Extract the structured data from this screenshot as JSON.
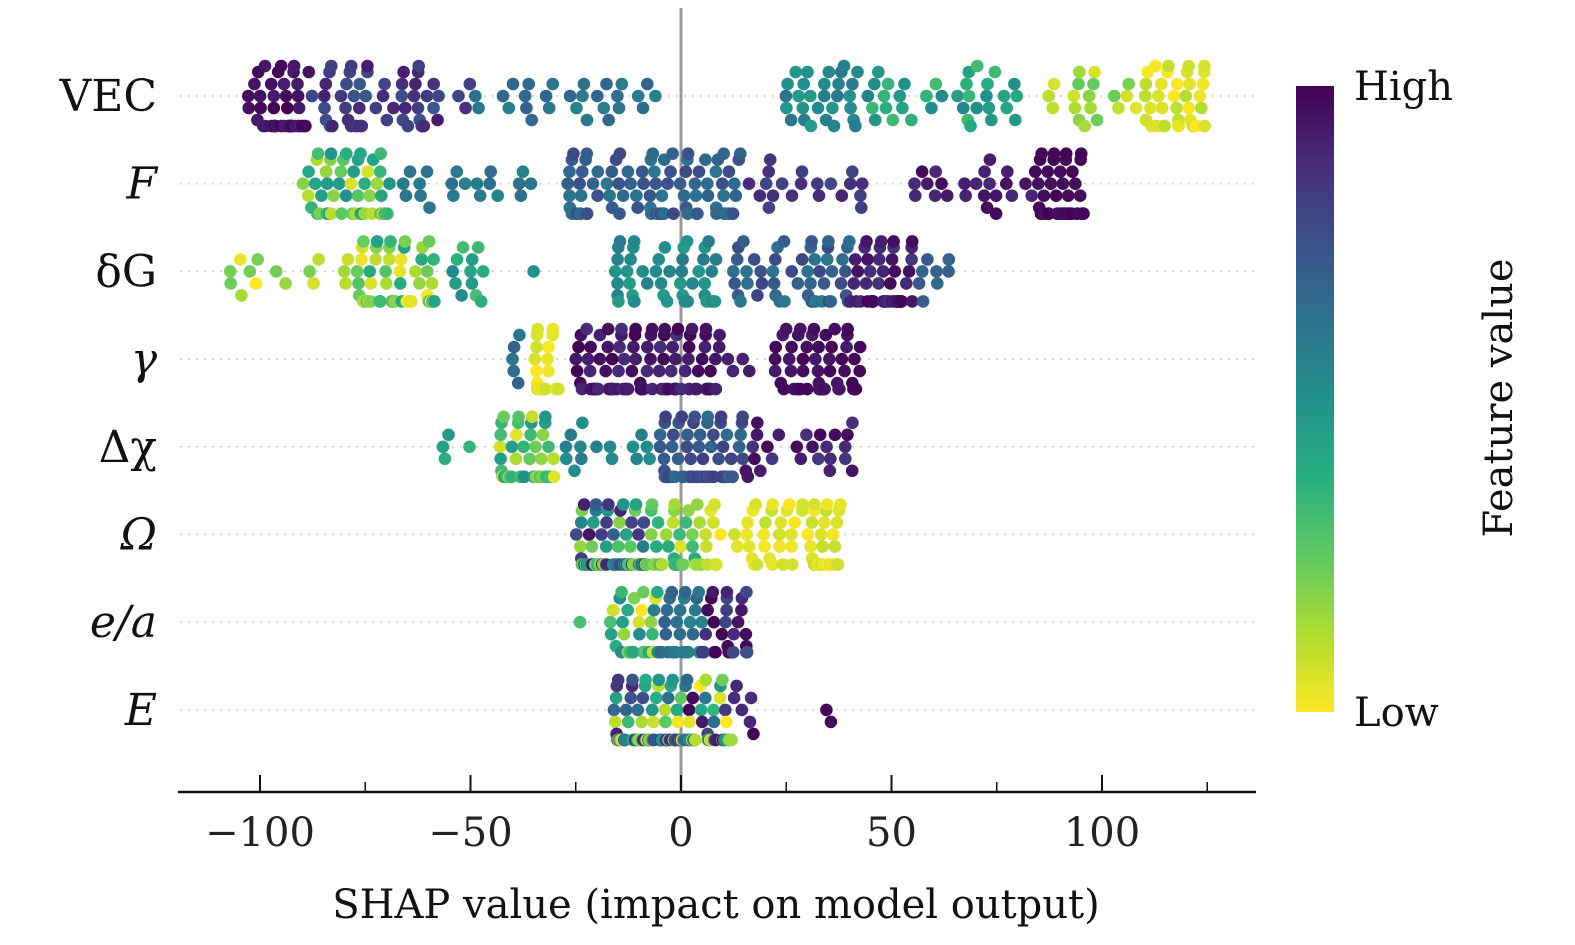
{
  "chart_data": {
    "type": "scatter",
    "subtype": "shap-beeswarm",
    "xlabel": "SHAP value (impact on model output)",
    "xlim": [
      -120,
      137
    ],
    "xticks": [
      -100,
      -50,
      0,
      50,
      100
    ],
    "xtick_labels": [
      "−100",
      "−50",
      "0",
      "50",
      "100"
    ],
    "colorbar": {
      "label": "Feature value",
      "high_label": "High",
      "low_label": "Low",
      "high_color": "#440154",
      "low_color": "#fde725"
    },
    "features": [
      {
        "name": "VEC",
        "clusters": [
          {
            "min": -103,
            "max": -88,
            "n": 46,
            "cmin": 0.9,
            "cmax": 1.0
          },
          {
            "min": -88,
            "max": -50,
            "n": 55,
            "cmin": 0.72,
            "cmax": 0.92
          },
          {
            "min": -50,
            "max": -5,
            "n": 28,
            "cmin": 0.55,
            "cmax": 0.68
          },
          {
            "min": 24,
            "max": 45,
            "n": 30,
            "cmin": 0.45,
            "cmax": 0.62
          },
          {
            "min": 45,
            "max": 80,
            "n": 35,
            "cmin": 0.3,
            "cmax": 0.55
          },
          {
            "min": 87,
            "max": 108,
            "n": 18,
            "cmin": 0.05,
            "cmax": 0.25
          },
          {
            "min": 108,
            "max": 125,
            "n": 40,
            "cmin": 0.0,
            "cmax": 0.12
          }
        ]
      },
      {
        "name": "F",
        "clusters": [
          {
            "min": -90,
            "max": -69,
            "n": 52,
            "cmin": 0.05,
            "cmax": 0.5
          },
          {
            "min": -69,
            "max": -35,
            "n": 20,
            "cmin": 0.55,
            "cmax": 0.65
          },
          {
            "min": -27,
            "max": 15,
            "n": 90,
            "cmin": 0.6,
            "cmax": 0.8
          },
          {
            "min": 15,
            "max": 45,
            "n": 20,
            "cmin": 0.78,
            "cmax": 0.9
          },
          {
            "min": 55,
            "max": 85,
            "n": 25,
            "cmin": 0.88,
            "cmax": 0.98
          },
          {
            "min": 85,
            "max": 96,
            "n": 50,
            "cmin": 0.95,
            "cmax": 1.0
          }
        ]
      },
      {
        "name": "δG",
        "clusters": [
          {
            "min": -108,
            "max": -77,
            "n": 15,
            "cmin": 0.0,
            "cmax": 0.25
          },
          {
            "min": -77,
            "max": -58,
            "n": 60,
            "cmin": 0.0,
            "cmax": 0.45
          },
          {
            "min": -55,
            "max": -45,
            "n": 12,
            "cmin": 0.3,
            "cmax": 0.55
          },
          {
            "min": -35,
            "max": -35,
            "n": 1,
            "cmin": 0.5,
            "cmax": 0.5
          },
          {
            "min": -16,
            "max": 10,
            "n": 45,
            "cmin": 0.45,
            "cmax": 0.6
          },
          {
            "min": 10,
            "max": 40,
            "n": 50,
            "cmin": 0.6,
            "cmax": 0.8
          },
          {
            "min": 40,
            "max": 55,
            "n": 55,
            "cmin": 0.85,
            "cmax": 1.0
          },
          {
            "min": 55,
            "max": 64,
            "n": 8,
            "cmin": 0.65,
            "cmax": 0.75
          }
        ]
      },
      {
        "name": "γ",
        "clusters": [
          {
            "min": -41,
            "max": -35,
            "n": 5,
            "cmin": 0.6,
            "cmax": 0.7
          },
          {
            "min": -35,
            "max": -29,
            "n": 25,
            "cmin": 0.0,
            "cmax": 0.08
          },
          {
            "min": -26,
            "max": 8,
            "n": 100,
            "cmin": 0.88,
            "cmax": 1.0
          },
          {
            "min": 8,
            "max": 22,
            "n": 8,
            "cmin": 0.88,
            "cmax": 0.98
          },
          {
            "min": 22,
            "max": 43,
            "n": 55,
            "cmin": 0.92,
            "cmax": 1.0
          }
        ]
      },
      {
        "name": "Δχ",
        "clusters": [
          {
            "min": -58,
            "max": -40,
            "n": 6,
            "cmin": 0.3,
            "cmax": 0.5
          },
          {
            "min": -43,
            "max": -30,
            "n": 45,
            "cmin": 0.0,
            "cmax": 0.5
          },
          {
            "min": -30,
            "max": -5,
            "n": 15,
            "cmin": 0.5,
            "cmax": 0.65
          },
          {
            "min": -5,
            "max": 15,
            "n": 70,
            "cmin": 0.65,
            "cmax": 0.82
          },
          {
            "min": 15,
            "max": 42,
            "n": 25,
            "cmin": 0.82,
            "cmax": 0.98
          }
        ]
      },
      {
        "name": "Ω",
        "clusters": [
          {
            "min": -25,
            "max": -8,
            "n": 70,
            "cmin": 0.15,
            "cmax": 1.0
          },
          {
            "min": -8,
            "max": 5,
            "n": 40,
            "cmin": 0.05,
            "cmax": 0.4
          },
          {
            "min": 5,
            "max": 38,
            "n": 70,
            "cmin": 0.0,
            "cmax": 0.1
          }
        ]
      },
      {
        "name": "e/a",
        "clusters": [
          {
            "min": -24,
            "max": -24,
            "n": 1,
            "cmin": 0.3,
            "cmax": 0.3
          },
          {
            "min": -17,
            "max": -5,
            "n": 35,
            "cmin": 0.0,
            "cmax": 0.6
          },
          {
            "min": -5,
            "max": 5,
            "n": 30,
            "cmin": 0.55,
            "cmax": 0.7
          },
          {
            "min": 5,
            "max": 16,
            "n": 30,
            "cmin": 0.75,
            "cmax": 1.0
          }
        ]
      },
      {
        "name": "E",
        "clusters": [
          {
            "min": -16,
            "max": 12,
            "n": 150,
            "cmin": 0.0,
            "cmax": 1.0
          },
          {
            "min": 12,
            "max": 18,
            "n": 6,
            "cmin": 0.85,
            "cmax": 1.0
          },
          {
            "min": 34,
            "max": 36,
            "n": 2,
            "cmin": 0.95,
            "cmax": 1.0
          }
        ]
      }
    ]
  }
}
